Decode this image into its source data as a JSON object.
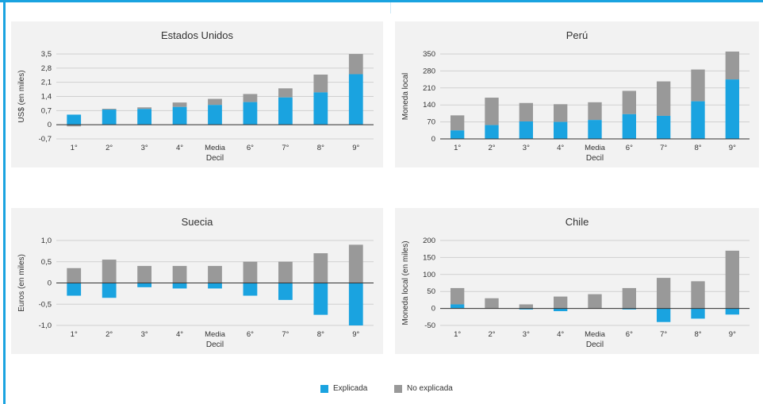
{
  "colors": {
    "explained": "#1aa3e0",
    "unexplained": "#999999",
    "panel_bg": "#f2f2f2",
    "grid": "#d0d0d0",
    "frame": "#1aa3e0"
  },
  "legend": {
    "explained": "Explicada",
    "unexplained": "No explicada"
  },
  "chart_data": [
    {
      "type": "bar",
      "stacked": true,
      "title": "Estados Unidos",
      "ylabel": "US$ (en miles)",
      "xlabel": "Decil",
      "ylim": [
        -0.7,
        3.5
      ],
      "yticks": [
        -0.7,
        0,
        0.7,
        1.4,
        2.1,
        2.8,
        3.5
      ],
      "ytick_labels": [
        "-0,7",
        "0",
        "0,7",
        "1,4",
        "2,1",
        "2,8",
        "3,5"
      ],
      "categories": [
        "1°",
        "2°",
        "3°",
        "4°",
        "Media",
        "6°",
        "7°",
        "8°",
        "9°"
      ],
      "series": [
        {
          "name": "Explicada",
          "values": [
            0.5,
            0.75,
            0.78,
            0.88,
            0.98,
            1.12,
            1.35,
            1.6,
            2.5
          ]
        },
        {
          "name": "No explicada",
          "values": [
            -0.08,
            0.04,
            0.08,
            0.22,
            0.3,
            0.4,
            0.45,
            0.88,
            1.0
          ]
        }
      ]
    },
    {
      "type": "bar",
      "stacked": true,
      "title": "Perú",
      "ylabel": "Moneda local",
      "xlabel": "Decil",
      "ylim": [
        0,
        350
      ],
      "yticks": [
        0,
        70,
        140,
        210,
        280,
        350
      ],
      "ytick_labels": [
        "0",
        "70",
        "140",
        "210",
        "280",
        "350"
      ],
      "categories": [
        "1°",
        "2°",
        "3°",
        "4°",
        "Media",
        "6°",
        "7°",
        "8°",
        "9°"
      ],
      "series": [
        {
          "name": "Explicada",
          "values": [
            35,
            57,
            72,
            70,
            78,
            102,
            95,
            155,
            245
          ]
        },
        {
          "name": "No explicada",
          "values": [
            62,
            113,
            76,
            73,
            73,
            96,
            142,
            131,
            115
          ]
        }
      ]
    },
    {
      "type": "bar",
      "stacked": true,
      "title": "Suecia",
      "ylabel": "Euros (en miles)",
      "xlabel": "Decil",
      "ylim": [
        -1.0,
        1.0
      ],
      "yticks": [
        -1.0,
        -0.5,
        0,
        0.5,
        1.0
      ],
      "ytick_labels": [
        "-1,0",
        "-0,5",
        "0",
        "0,5",
        "1,0"
      ],
      "categories": [
        "1°",
        "2°",
        "3°",
        "4°",
        "Media",
        "6°",
        "7°",
        "8°",
        "9°"
      ],
      "series": [
        {
          "name": "Explicada",
          "values": [
            -0.3,
            -0.35,
            -0.1,
            -0.13,
            -0.13,
            -0.3,
            -0.4,
            -0.75,
            -1.0
          ]
        },
        {
          "name": "No explicada",
          "values": [
            0.35,
            0.55,
            0.4,
            0.4,
            0.4,
            0.5,
            0.5,
            0.7,
            0.9
          ]
        }
      ]
    },
    {
      "type": "bar",
      "stacked": true,
      "title": "Chile",
      "ylabel": "Moneda local (en miles)",
      "xlabel": "Decil",
      "ylim": [
        -50,
        200
      ],
      "yticks": [
        -50,
        0,
        50,
        100,
        150,
        200
      ],
      "ytick_labels": [
        "-50",
        "0",
        "50",
        "100",
        "150",
        "200"
      ],
      "categories": [
        "1°",
        "2°",
        "3°",
        "4°",
        "Media",
        "6°",
        "7°",
        "8°",
        "9°"
      ],
      "series": [
        {
          "name": "Explicada",
          "values": [
            12,
            0,
            -3,
            -8,
            0,
            -3,
            -40,
            -30,
            -18
          ]
        },
        {
          "name": "No explicada",
          "values": [
            48,
            30,
            12,
            35,
            42,
            60,
            90,
            80,
            170
          ]
        }
      ]
    }
  ]
}
